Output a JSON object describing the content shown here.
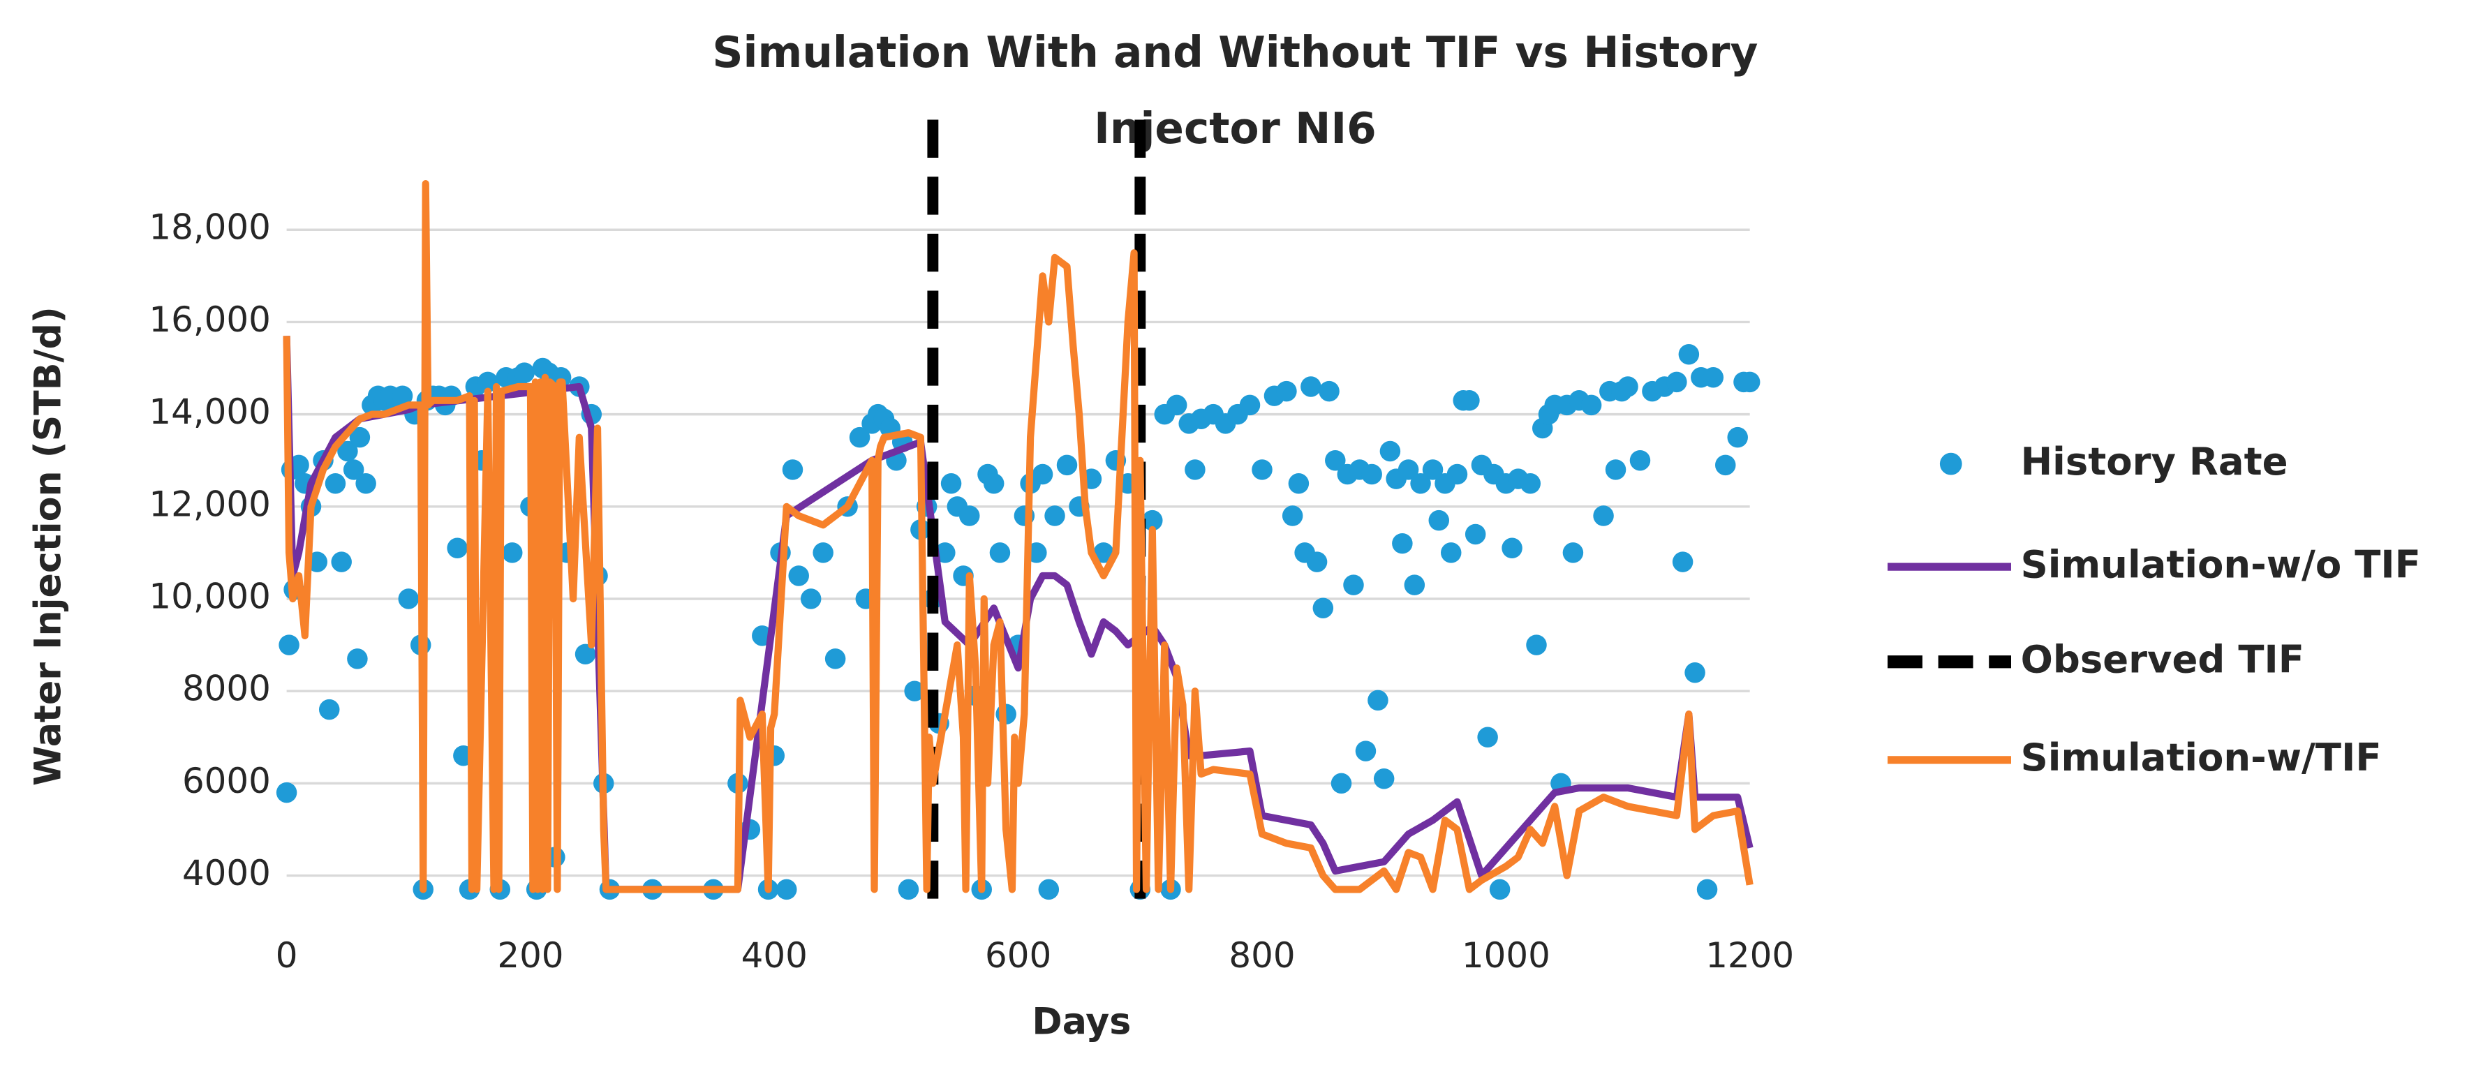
{
  "chart_data": {
    "type": "line",
    "title": [
      "Simulation With and Without TIF vs History",
      "Injector NI6"
    ],
    "x_label": "Days",
    "y_label": "Water Injection (STB/d)",
    "xlim": [
      0,
      1200
    ],
    "xticks": [
      0,
      200,
      400,
      600,
      800,
      1000,
      1200
    ],
    "ylim": [
      3500,
      19000
    ],
    "yticks": [
      4000,
      6000,
      8000,
      {
        "value": 10000,
        "label": "10,000"
      },
      {
        "value": 12000,
        "label": "12,000"
      },
      {
        "value": 14000,
        "label": "14,000"
      },
      {
        "value": 16000,
        "label": "16,000"
      },
      {
        "value": 18000,
        "label": "18,000"
      }
    ],
    "grid": true,
    "legend": "right",
    "series": [
      {
        "name": "History Rate",
        "type": "scatter",
        "color": "#1f9bd7",
        "x": [
          0,
          2,
          4,
          6,
          10,
          15,
          20,
          25,
          30,
          35,
          40,
          45,
          50,
          55,
          58,
          60,
          65,
          70,
          75,
          80,
          85,
          90,
          95,
          100,
          105,
          110,
          112,
          115,
          120,
          125,
          130,
          135,
          140,
          145,
          150,
          155,
          160,
          165,
          170,
          175,
          180,
          185,
          190,
          195,
          200,
          205,
          210,
          215,
          220,
          225,
          230,
          240,
          245,
          250,
          255,
          260,
          265,
          300,
          350,
          370,
          380,
          390,
          395,
          400,
          405,
          410,
          415,
          420,
          430,
          440,
          450,
          460,
          470,
          475,
          480,
          485,
          490,
          495,
          500,
          505,
          510,
          515,
          520,
          525,
          530,
          535,
          540,
          545,
          550,
          555,
          560,
          565,
          570,
          575,
          580,
          585,
          590,
          600,
          605,
          610,
          615,
          620,
          625,
          630,
          640,
          650,
          660,
          670,
          680,
          690,
          700,
          710,
          720,
          725,
          730,
          740,
          745,
          750,
          760,
          770,
          780,
          790,
          800,
          810,
          820,
          825,
          830,
          835,
          840,
          845,
          850,
          855,
          860,
          865,
          870,
          875,
          880,
          885,
          890,
          895,
          900,
          905,
          910,
          915,
          920,
          925,
          930,
          940,
          945,
          950,
          955,
          960,
          965,
          970,
          975,
          980,
          985,
          990,
          995,
          1000,
          1005,
          1010,
          1020,
          1025,
          1030,
          1035,
          1040,
          1045,
          1050,
          1055,
          1060,
          1070,
          1080,
          1085,
          1090,
          1095,
          1100,
          1110,
          1120,
          1130,
          1140,
          1145,
          1150,
          1155,
          1160,
          1165,
          1170,
          1180,
          1190,
          1195,
          1200
        ],
        "values": [
          5800,
          9000,
          12800,
          10200,
          12900,
          12500,
          12000,
          10800,
          13000,
          7600,
          12500,
          10800,
          13200,
          12800,
          8700,
          13500,
          12500,
          14200,
          14400,
          14300,
          14400,
          14200,
          14400,
          10000,
          14000,
          9000,
          3700,
          14300,
          14400,
          14400,
          14200,
          14400,
          11100,
          6600,
          3700,
          14600,
          13000,
          14700,
          12000,
          3700,
          14800,
          11000,
          14800,
          14900,
          12000,
          3700,
          15000,
          14900,
          4400,
          14800,
          11000,
          14600,
          8800,
          14000,
          10500,
          6000,
          3700,
          3700,
          3700,
          6000,
          5000,
          9200,
          3700,
          6600,
          11000,
          3700,
          12800,
          10500,
          10000,
          11000,
          8700,
          12000,
          13500,
          10000,
          13800,
          14000,
          13900,
          13700,
          13000,
          13400,
          3700,
          8000,
          11500,
          12000,
          10000,
          7300,
          11000,
          12500,
          12000,
          10500,
          11800,
          7900,
          3700,
          12700,
          12500,
          11000,
          7500,
          9000,
          11800,
          12500,
          11000,
          12700,
          3700,
          11800,
          12900,
          12000,
          12600,
          11000,
          13000,
          12500,
          3700,
          11700,
          14000,
          3700,
          14200,
          13800,
          12800,
          13900,
          14000,
          13800,
          14000,
          14200,
          12800,
          14400,
          14500,
          11800,
          12500,
          11000,
          14600,
          10800,
          9800,
          14500,
          13000,
          6000,
          12700,
          10300,
          12800,
          6700,
          12700,
          7800,
          6100,
          13200,
          12600,
          11200,
          12800,
          10300,
          12500,
          12800,
          11700,
          12500,
          11000,
          12700,
          14300,
          14300,
          11400,
          12900,
          7000,
          12700,
          3700,
          12500,
          11100,
          12600,
          12500,
          9000,
          13700,
          14000,
          14200,
          6000,
          14200,
          11000,
          14300,
          14200,
          11800,
          14500,
          12800,
          14500,
          14600,
          13000,
          14500,
          14600,
          14700,
          10800,
          15300,
          8400,
          14800,
          3700,
          14800,
          12900,
          13500,
          14700,
          14700
        ]
      },
      {
        "name": "Simulation-w/o TIF",
        "type": "line",
        "color": "#7030a0",
        "x": [
          0,
          5,
          10,
          20,
          40,
          60,
          100,
          110,
          240,
          250,
          262,
          370,
          410,
          480,
          520,
          540,
          560,
          580,
          600,
          610,
          620,
          630,
          640,
          650,
          660,
          670,
          680,
          690,
          700,
          710,
          720,
          730,
          740,
          750,
          790,
          800,
          840,
          850,
          860,
          900,
          920,
          940,
          960,
          980,
          1000,
          1020,
          1040,
          1060,
          1100,
          1140,
          1150,
          1155,
          1170,
          1190,
          1200
        ],
        "values": [
          15700,
          10500,
          11000,
          12500,
          13500,
          13900,
          14100,
          14200,
          14600,
          13700,
          3700,
          3700,
          11800,
          13000,
          13400,
          9500,
          9000,
          9800,
          8500,
          10000,
          10500,
          10500,
          10300,
          9500,
          8800,
          9500,
          9300,
          9000,
          9200,
          9400,
          9000,
          8300,
          6600,
          6600,
          6700,
          5300,
          5100,
          4700,
          4100,
          4300,
          4900,
          5200,
          5600,
          4000,
          4600,
          5200,
          5800,
          5900,
          5900,
          5700,
          7500,
          5700,
          5700,
          5700,
          4600
        ]
      },
      {
        "name": "Observed TIF",
        "type": "line",
        "dash": true,
        "color": "#000000",
        "x": [
          530,
          530,
          null,
          700,
          700
        ],
        "values": [
          3500,
          20700,
          null,
          3500,
          20700
        ]
      },
      {
        "name": "Simulation-w/TIF",
        "type": "line",
        "color": "#f7812a",
        "x": [
          0,
          2,
          5,
          10,
          15,
          20,
          30,
          40,
          50,
          60,
          70,
          80,
          100,
          110,
          112,
          114,
          116,
          120,
          140,
          150,
          152,
          154,
          156,
          165,
          170,
          172,
          174,
          176,
          190,
          200,
          202,
          204,
          206,
          208,
          210,
          212,
          214,
          216,
          220,
          222,
          224,
          226,
          235,
          240,
          250,
          255,
          260,
          262,
          264,
          370,
          372,
          380,
          390,
          395,
          397,
          400,
          410,
          420,
          440,
          460,
          470,
          480,
          482,
          485,
          487,
          490,
          510,
          520,
          525,
          527,
          530,
          540,
          550,
          555,
          557,
          560,
          565,
          570,
          572,
          575,
          580,
          585,
          590,
          595,
          597,
          600,
          605,
          610,
          620,
          625,
          630,
          640,
          645,
          650,
          655,
          660,
          670,
          680,
          690,
          695,
          697,
          700,
          705,
          710,
          715,
          720,
          725,
          730,
          735,
          740,
          745,
          750,
          760,
          790,
          800,
          820,
          840,
          850,
          860,
          880,
          900,
          910,
          920,
          930,
          940,
          950,
          960,
          970,
          980,
          1000,
          1010,
          1020,
          1030,
          1040,
          1050,
          1060,
          1080,
          1100,
          1120,
          1140,
          1150,
          1155,
          1170,
          1190,
          1195,
          1200
        ],
        "values": [
          15700,
          11000,
          10000,
          10500,
          9200,
          12000,
          12800,
          13300,
          13600,
          13900,
          14000,
          14000,
          14200,
          14200,
          3700,
          19000,
          14200,
          14300,
          14300,
          14400,
          3700,
          14300,
          3700,
          14500,
          3700,
          14600,
          3700,
          14500,
          14600,
          14600,
          3700,
          14700,
          3700,
          14700,
          3700,
          14800,
          3700,
          14700,
          14600,
          3700,
          14700,
          14700,
          10000,
          13500,
          9000,
          13700,
          5000,
          3700,
          3700,
          3700,
          7800,
          7000,
          7500,
          3700,
          7200,
          7500,
          12000,
          11800,
          11600,
          12000,
          12500,
          13000,
          3700,
          13000,
          13300,
          13500,
          13600,
          13500,
          3700,
          7000,
          6000,
          7500,
          9000,
          7000,
          3700,
          10500,
          8500,
          3700,
          10000,
          6000,
          9000,
          9500,
          5000,
          3700,
          7000,
          6000,
          7500,
          13500,
          17000,
          16000,
          17400,
          17200,
          15500,
          14000,
          12000,
          11000,
          10500,
          11000,
          16000,
          17500,
          3700,
          13000,
          3700,
          11500,
          3700,
          9000,
          3700,
          8500,
          7700,
          3700,
          8000,
          6200,
          6300,
          6200,
          4900,
          4700,
          4600,
          4000,
          3700,
          3700,
          4100,
          3700,
          4500,
          4400,
          3700,
          5200,
          5000,
          3700,
          3900,
          4200,
          4400,
          5000,
          4700,
          5500,
          4000,
          5400,
          5700,
          5500,
          5400,
          5300,
          7500,
          5000,
          5300,
          5400,
          4600,
          3800
        ]
      }
    ]
  }
}
